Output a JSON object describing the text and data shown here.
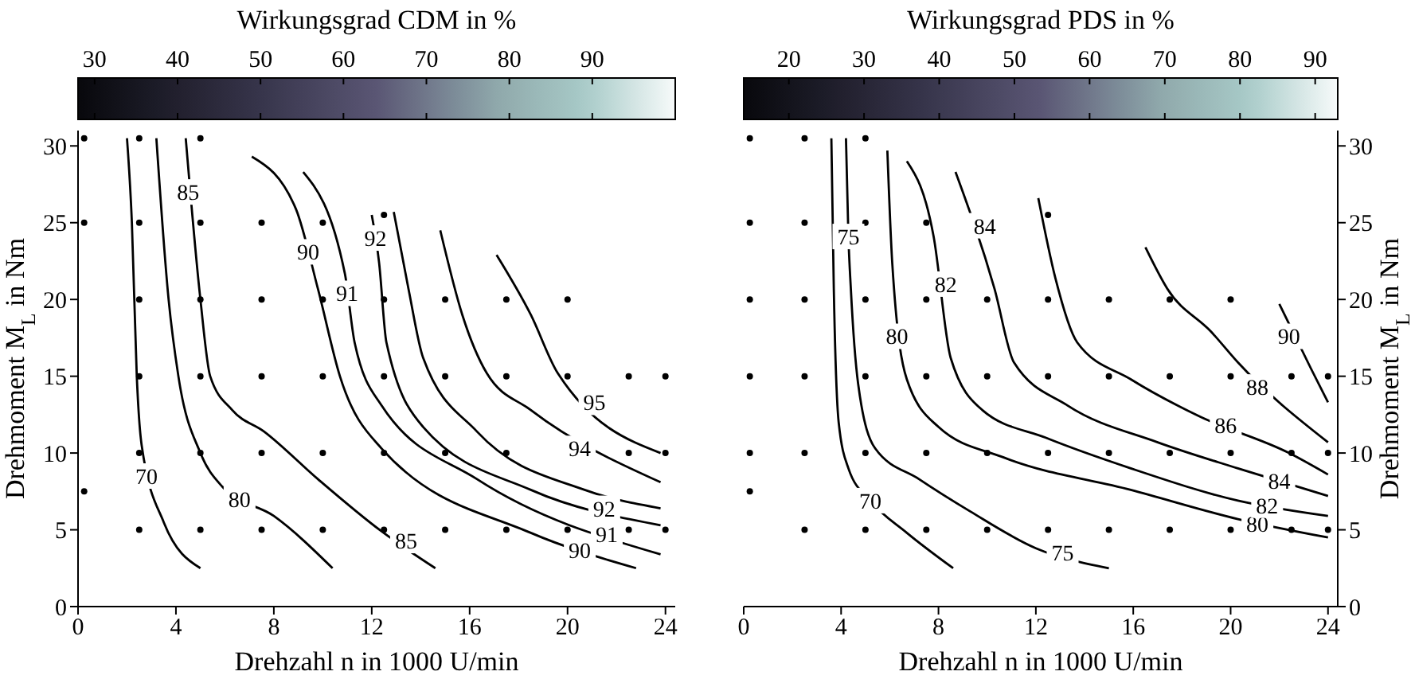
{
  "chart_data": [
    {
      "type": "line",
      "clabel": "Wirkungsgrad CDM in %",
      "clim": [
        28,
        100
      ],
      "cticks": [
        30,
        40,
        50,
        60,
        70,
        80,
        90
      ],
      "xlabel": "Drehzahl n in 1000 U/min",
      "ylabel": "Drehmoment M$_{L}$ in Nm",
      "xlim": [
        0,
        24.4
      ],
      "xticks": [
        0,
        4,
        8,
        12,
        16,
        20,
        24
      ],
      "ylim": [
        0,
        31
      ],
      "yticks": [
        0,
        5,
        10,
        15,
        20,
        25,
        30
      ],
      "series": [
        {
          "color": "#000000",
          "x": [
            2.0,
            2.2,
            2.4,
            2.6,
            3.5,
            5.0
          ],
          "values": [
            30.5,
            25,
            15,
            10.5,
            5.5,
            2.5
          ]
        },
        {
          "color": "#000000",
          "x": [
            3.2,
            3.7,
            4.1,
            5.0,
            5.9,
            8.0,
            10.4
          ],
          "values": [
            30.5,
            20,
            15,
            10,
            7.8,
            5.9,
            2.5
          ]
        },
        {
          "color": "#000000",
          "x": [
            4.4,
            5.0,
            5.4,
            6.3,
            7.6,
            9.8,
            12.4,
            14.6
          ],
          "values": [
            30.5,
            20,
            15,
            12.8,
            11.4,
            8.3,
            4.9,
            2.5
          ]
        },
        {
          "color": "#000000",
          "x": [
            7.1,
            8.9,
            9.8,
            10.7,
            12.4,
            18.5,
            22.8
          ],
          "values": [
            29.3,
            25.9,
            20.7,
            15,
            10.3,
            4.8,
            2.5
          ]
        },
        {
          "color": "#000000",
          "x": [
            9.2,
            10.9,
            11.3,
            12.4,
            16.3,
            23.8
          ],
          "values": [
            28.3,
            21.7,
            17.2,
            13.1,
            8.3,
            3.4
          ]
        },
        {
          "color": "#000000",
          "x": [
            12.0,
            12.3,
            12.6,
            14.1,
            18.5,
            23.8
          ],
          "values": [
            25.5,
            22.4,
            17.2,
            11.7,
            7.6,
            5.3
          ]
        },
        {
          "color": "#000000",
          "x": [
            12.9,
            13.5,
            14.1,
            16.3,
            20.7,
            23.8
          ],
          "values": [
            25.7,
            20.7,
            16.2,
            11.4,
            7.6,
            6.4
          ]
        },
        {
          "color": "#000000",
          "x": [
            14.8,
            15.7,
            16.7,
            18.5,
            23.8
          ],
          "values": [
            24.5,
            19,
            15.2,
            12.8,
            8.1
          ]
        },
        {
          "color": "#000000",
          "x": [
            17.1,
            18.5,
            19.6,
            23.8
          ],
          "values": [
            22.9,
            19,
            15.2,
            10
          ]
        },
        {
          "type": "scatter",
          "marker": "circle",
          "color": "#000000",
          "x": [
            0.25,
            0.25,
            0.25,
            2.5,
            2.5,
            2.5,
            2.5,
            2.5,
            2.5,
            5,
            5,
            5,
            5,
            5,
            5,
            7.5,
            7.5,
            7.5,
            7.5,
            7.5,
            10,
            10,
            10,
            10,
            10,
            12.5,
            12.5,
            12.5,
            12.5,
            12.5,
            15,
            15,
            15,
            15,
            17.5,
            17.5,
            17.5,
            17.5,
            20,
            20,
            20,
            22.5,
            22.5,
            22.5,
            24,
            24,
            24
          ],
          "values": [
            30.5,
            25,
            7.5,
            30.5,
            25,
            20,
            15,
            10,
            5,
            30.5,
            25,
            20,
            15,
            10,
            5,
            25,
            20,
            15,
            10,
            5,
            25,
            20,
            15,
            10,
            5,
            25.5,
            20,
            15,
            10,
            5,
            20,
            15,
            10,
            5,
            20,
            15,
            10,
            5,
            20,
            15,
            5,
            15,
            10,
            5,
            15,
            10,
            5
          ]
        }
      ],
      "annotations": [
        {
          "text": "70",
          "x": 2.8,
          "y": 8.5
        },
        {
          "text": "80",
          "x": 6.6,
          "y": 7.0
        },
        {
          "text": "85",
          "x": 4.5,
          "y": 27
        },
        {
          "text": "85",
          "x": 13.4,
          "y": 4.3
        },
        {
          "text": "90",
          "x": 9.4,
          "y": 23.1
        },
        {
          "text": "90",
          "x": 20.5,
          "y": 3.7
        },
        {
          "text": "91",
          "x": 11.0,
          "y": 20.4
        },
        {
          "text": "91",
          "x": 21.6,
          "y": 4.7
        },
        {
          "text": "92",
          "x": 12.15,
          "y": 24
        },
        {
          "text": "92",
          "x": 21.5,
          "y": 6.4
        },
        {
          "text": "94",
          "x": 20.5,
          "y": 10.3
        },
        {
          "text": "95",
          "x": 21.1,
          "y": 13.3
        }
      ]
    },
    {
      "type": "line",
      "clabel": "Wirkungsgrad PDS in %",
      "clim": [
        14,
        93
      ],
      "cticks": [
        20,
        30,
        40,
        50,
        60,
        70,
        80,
        90
      ],
      "xlabel": "Drehzahl n in 1000 U/min",
      "ylabel": "Drehmoment M$_{L}$ in Nm",
      "xlim": [
        0,
        24.4
      ],
      "xticks": [
        0,
        4,
        8,
        12,
        16,
        20,
        24
      ],
      "ylim": [
        0,
        31
      ],
      "yticks": [
        0,
        5,
        10,
        15,
        20,
        25,
        30
      ],
      "series": [
        {
          "color": "#000000",
          "x": [
            3.6,
            3.7,
            3.9,
            4.3,
            5.2,
            6.7,
            8.6
          ],
          "values": [
            30.5,
            20.7,
            12,
            9,
            6.9,
            4.8,
            2.5
          ]
        },
        {
          "color": "#000000",
          "x": [
            4.2,
            4.3,
            4.4,
            4.7,
            5.4,
            7.2,
            9.3,
            12.0,
            15.0
          ],
          "values": [
            30.5,
            24.1,
            20.7,
            14.5,
            10.3,
            8.3,
            6.2,
            3.8,
            2.5
          ]
        },
        {
          "color": "#000000",
          "x": [
            5.9,
            6.1,
            6.7,
            8.0,
            10.7,
            15.9,
            20.3,
            24
          ],
          "values": [
            29.7,
            22.4,
            14.8,
            11.7,
            9.7,
            7.6,
            5.7,
            4.5
          ]
        },
        {
          "color": "#000000",
          "x": [
            6.7,
            7.8,
            8.5,
            9.8,
            12.4,
            15.9,
            20.3,
            24
          ],
          "values": [
            29,
            24.1,
            16.2,
            12.8,
            11,
            9,
            6.9,
            5.9
          ]
        },
        {
          "color": "#000000",
          "x": [
            8.7,
            10.3,
            11.1,
            13.3,
            17.0,
            20.3,
            24
          ],
          "values": [
            28.3,
            20.7,
            15.9,
            13.1,
            10.7,
            9,
            7.2
          ]
        },
        {
          "color": "#000000",
          "x": [
            12.1,
            12.8,
            13.7,
            15.9,
            18.7,
            22.4,
            24
          ],
          "values": [
            26.6,
            21.4,
            17.2,
            14.8,
            12.4,
            10,
            8.6
          ]
        },
        {
          "color": "#000000",
          "x": [
            16.5,
            17.4,
            19.2,
            20.3,
            24
          ],
          "values": [
            23.4,
            20.7,
            17.9,
            15.9,
            10.7
          ]
        },
        {
          "color": "#000000",
          "x": [
            22.0,
            23.3,
            24
          ],
          "values": [
            19.7,
            15.5,
            13.3
          ]
        },
        {
          "type": "scatter",
          "marker": "circle",
          "color": "#000000",
          "x": [
            0.25,
            0.25,
            0.25,
            0.25,
            0.25,
            0.25,
            2.5,
            2.5,
            2.5,
            2.5,
            2.5,
            2.5,
            5,
            5,
            5,
            5,
            5,
            5,
            7.5,
            7.5,
            7.5,
            7.5,
            7.5,
            10,
            10,
            10,
            10,
            12.5,
            12.5,
            12.5,
            12.5,
            12.5,
            15,
            15,
            15,
            15,
            17.5,
            17.5,
            17.5,
            17.5,
            20,
            20,
            20,
            20,
            22.5,
            22.5,
            22.5,
            24,
            24,
            24
          ],
          "values": [
            30.5,
            25,
            20,
            15,
            10,
            7.5,
            30.5,
            25,
            20,
            15,
            10,
            5,
            30.5,
            25,
            20,
            15,
            10,
            5,
            25,
            20,
            15,
            10,
            5,
            20,
            15,
            10,
            5,
            25.5,
            20,
            15,
            10,
            5,
            20,
            15,
            10,
            5,
            20,
            15,
            10,
            5,
            20,
            15,
            10,
            5,
            15,
            10,
            5,
            15,
            10,
            5
          ]
        }
      ],
      "annotations": [
        {
          "text": "70",
          "x": 5.2,
          "y": 6.9
        },
        {
          "text": "75",
          "x": 4.3,
          "y": 24.1
        },
        {
          "text": "75",
          "x": 13.1,
          "y": 3.5
        },
        {
          "text": "80",
          "x": 6.3,
          "y": 17.6
        },
        {
          "text": "80",
          "x": 21.1,
          "y": 5.4
        },
        {
          "text": "82",
          "x": 8.3,
          "y": 21
        },
        {
          "text": "82",
          "x": 21.5,
          "y": 6.6
        },
        {
          "text": "84",
          "x": 9.9,
          "y": 24.8
        },
        {
          "text": "84",
          "x": 22,
          "y": 8.2
        },
        {
          "text": "86",
          "x": 19.8,
          "y": 11.8
        },
        {
          "text": "88",
          "x": 21.1,
          "y": 14.3
        },
        {
          "text": "90",
          "x": 22.4,
          "y": 17.6
        }
      ]
    }
  ]
}
